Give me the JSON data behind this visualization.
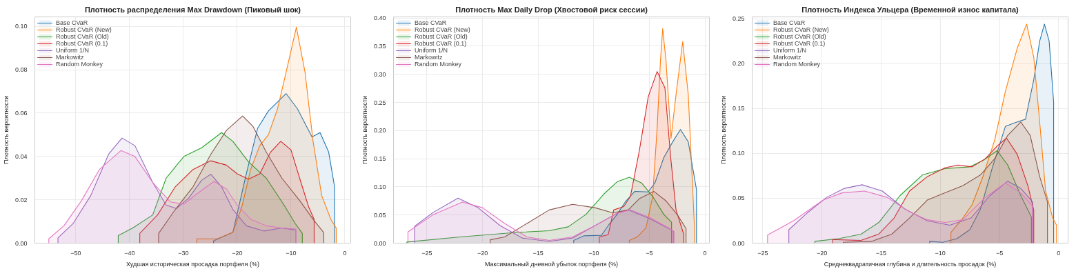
{
  "chart_data": [
    {
      "type": "area",
      "title": "Плотность распределения Max Drawdown (Пиковый шок)",
      "xlabel": "Худшая историческая просадка портфеля (%)",
      "ylabel": "Плотность вероятности",
      "xlim": [
        -57.6,
        1.1
      ],
      "ylim": [
        0,
        0.1044
      ],
      "xticks": [
        {
          "value": -50,
          "label": "−50"
        },
        {
          "value": -40,
          "label": "−40"
        },
        {
          "value": -30,
          "label": "−30"
        },
        {
          "value": -20,
          "label": "−20"
        },
        {
          "value": -10,
          "label": "−10"
        },
        0
      ],
      "yticks": [
        {
          "value": 0,
          "label": "0.00"
        },
        {
          "value": 0.02,
          "label": "0.02"
        },
        {
          "value": 0.04,
          "label": "0.04"
        },
        {
          "value": 0.06,
          "label": "0.06"
        },
        {
          "value": 0.08,
          "label": "0.08"
        },
        {
          "value": 0.1,
          "label": "0.10"
        }
      ],
      "grid": true,
      "legend": "top left",
      "series": [
        {
          "name": "Base CVaR",
          "color": "#1f77b4",
          "x": [
            -24.4,
            -20.8,
            -18.3,
            -16.2,
            -14.2,
            -10.9,
            -8.8,
            -6.1,
            -4.6,
            -3.0,
            -1.9
          ],
          "values": [
            0.001,
            0.005,
            0.032,
            0.053,
            0.061,
            0.069,
            0.062,
            0.049,
            0.051,
            0.042,
            0.026
          ]
        },
        {
          "name": "Robust CVaR (New)",
          "color": "#ff7f0e",
          "x": [
            -27.5,
            -23.7,
            -20.8,
            -19.1,
            -17.5,
            -15.8,
            -14.2,
            -12.5,
            -10.9,
            -9.0,
            -7.4,
            -5.9,
            -4.3,
            -2.6,
            -1.6
          ],
          "values": [
            0.002,
            0.002,
            0.005,
            0.017,
            0.034,
            0.045,
            0.05,
            0.062,
            0.079,
            0.0997,
            0.079,
            0.047,
            0.022,
            0.011,
            0.007
          ]
        },
        {
          "name": "Robust CVaR (Old)",
          "color": "#2ca02c",
          "x": [
            -42.1,
            -39.4,
            -35.7,
            -33.2,
            -29.9,
            -26.6,
            -22.9,
            -20.8,
            -17.9,
            -14.6,
            -11.3,
            -9.2,
            -7.9
          ],
          "values": [
            0.0035,
            0.007,
            0.013,
            0.03,
            0.04,
            0.044,
            0.051,
            0.047,
            0.0375,
            0.03,
            0.0176,
            0.009,
            0.0045
          ]
        },
        {
          "name": "Robust CVaR (0.1)",
          "color": "#d62728",
          "x": [
            -38.1,
            -34.8,
            -31.5,
            -28.2,
            -24.9,
            -22.0,
            -20.0,
            -17.9,
            -15.8,
            -13.8,
            -11.9,
            -10.0,
            -8.4,
            -6.7,
            -5.7
          ],
          "values": [
            0.0045,
            0.013,
            0.026,
            0.034,
            0.038,
            0.036,
            0.032,
            0.0295,
            0.032,
            0.042,
            0.047,
            0.043,
            0.03,
            0.0166,
            0.011
          ]
        },
        {
          "name": "Uniform 1/N",
          "color": "#9467bd",
          "x": [
            -53.3,
            -50.5,
            -47.2,
            -43.9,
            -41.4,
            -39.0,
            -35.7,
            -33.2,
            -31.3,
            -29.0,
            -26.6,
            -24.9,
            -22.9,
            -20.8,
            -18.3,
            -15.0,
            -11.7,
            -9.1
          ],
          "values": [
            0.0024,
            0.009,
            0.022,
            0.041,
            0.0485,
            0.045,
            0.028,
            0.0176,
            0.016,
            0.0208,
            0.029,
            0.0318,
            0.026,
            0.0155,
            0.008,
            0.0056,
            0.007,
            0.006
          ]
        },
        {
          "name": "Markowitz",
          "color": "#8c564b",
          "x": [
            -34.6,
            -31.5,
            -28.2,
            -24.9,
            -22.0,
            -19.0,
            -17.1,
            -14.6,
            -11.7,
            -8.4,
            -5.9,
            -3.9
          ],
          "values": [
            0.0045,
            0.0155,
            0.026,
            0.041,
            0.052,
            0.0587,
            0.054,
            0.042,
            0.03,
            0.0197,
            0.011,
            0.0048
          ]
        },
        {
          "name": "Random Monkey",
          "color": "#e377c2",
          "x": [
            -55.0,
            -52.2,
            -48.9,
            -45.6,
            -41.6,
            -39.0,
            -35.7,
            -32.4,
            -29.9,
            -27.4,
            -24.3,
            -22.0,
            -20.0,
            -17.5,
            -14.6,
            -11.7,
            -9.1
          ],
          "values": [
            0.002,
            0.008,
            0.0197,
            0.034,
            0.0427,
            0.04,
            0.028,
            0.019,
            0.018,
            0.0229,
            0.0285,
            0.025,
            0.0176,
            0.011,
            0.008,
            0.007,
            0.0066
          ]
        }
      ]
    },
    {
      "type": "area",
      "title": "Плотность Max Daily Drop (Хвостовой риск сессии)",
      "xlabel": "Максимальный дневной убыток портфеля (%)",
      "ylabel": "Плотность вероятности",
      "xlim": [
        -28.0,
        0.4
      ],
      "ylim": [
        0,
        0.402
      ],
      "xticks": [
        {
          "value": -25,
          "label": "−25"
        },
        {
          "value": -20,
          "label": "−20"
        },
        {
          "value": -15,
          "label": "−15"
        },
        {
          "value": -10,
          "label": "−10"
        },
        {
          "value": -5,
          "label": "−5"
        },
        0
      ],
      "yticks": [
        {
          "value": 0,
          "label": "0.00"
        },
        {
          "value": 0.05,
          "label": "0.05"
        },
        {
          "value": 0.1,
          "label": "0.10"
        },
        {
          "value": 0.15,
          "label": "0.15"
        },
        {
          "value": 0.2,
          "label": "0.20"
        },
        {
          "value": 0.25,
          "label": "0.25"
        },
        {
          "value": 0.3,
          "label": "0.30"
        },
        {
          "value": 0.35,
          "label": "0.35"
        },
        {
          "value": 0.4,
          "label": "0.40"
        }
      ],
      "grid": true,
      "legend": "top left",
      "series": [
        {
          "name": "Base CVaR",
          "color": "#1f77b4",
          "x": [
            -11.8,
            -10.9,
            -9.3,
            -8.7,
            -7.9,
            -7.1,
            -6.3,
            -5.1,
            -4.5,
            -3.7,
            -2.9,
            -2.2,
            -1.5,
            -0.76
          ],
          "values": [
            0.005,
            0.013,
            0.014,
            0.031,
            0.051,
            0.075,
            0.092,
            0.091,
            0.107,
            0.152,
            0.18,
            0.202,
            0.18,
            0.095
          ]
        },
        {
          "name": "Robust CVaR (New)",
          "color": "#ff7f0e",
          "x": [
            -6.8,
            -6.1,
            -5.3,
            -4.7,
            -4.3,
            -4.0,
            -3.8,
            -3.5,
            -3.05,
            -2.6,
            -2.0,
            -1.5,
            -0.94
          ],
          "values": [
            0.005,
            0.011,
            0.027,
            0.083,
            0.204,
            0.324,
            0.381,
            0.324,
            0.186,
            0.264,
            0.358,
            0.264,
            0.027
          ]
        },
        {
          "name": "Robust CVaR (Old)",
          "color": "#2ca02c",
          "x": [
            -26.8,
            -22.0,
            -17.0,
            -14.0,
            -12.3,
            -10.7,
            -9.1,
            -7.9,
            -6.8,
            -5.7,
            -4.7,
            -3.7,
            -3.0
          ],
          "values": [
            0.002,
            0.011,
            0.019,
            0.022,
            0.029,
            0.051,
            0.087,
            0.109,
            0.117,
            0.107,
            0.083,
            0.051,
            0.037
          ]
        },
        {
          "name": "Robust CVaR (0.1)",
          "color": "#d62728",
          "x": [
            -9.5,
            -8.7,
            -8.2,
            -7.3,
            -6.7,
            -5.9,
            -5.1,
            -4.3,
            -3.6,
            -3.1,
            -2.6,
            -1.9
          ],
          "values": [
            0.011,
            0.015,
            0.059,
            0.065,
            0.083,
            0.164,
            0.26,
            0.305,
            0.276,
            0.156,
            0.059,
            0.015
          ]
        },
        {
          "name": "Uniform 1/N",
          "color": "#9467bd",
          "x": [
            -26.1,
            -24.4,
            -22.2,
            -20.4,
            -18.4,
            -16.4,
            -14.0,
            -11.9,
            -9.9,
            -7.9,
            -6.9,
            -4.9,
            -2.8
          ],
          "values": [
            0.03,
            0.055,
            0.08,
            0.063,
            0.031,
            0.009,
            0.003,
            0.009,
            0.031,
            0.053,
            0.059,
            0.043,
            0.021
          ]
        },
        {
          "name": "Markowitz",
          "color": "#8c564b",
          "x": [
            -19.3,
            -18.0,
            -16.0,
            -14.0,
            -11.9,
            -9.9,
            -8.3,
            -6.9,
            -5.9,
            -4.6,
            -3.5,
            -2.5,
            -1.7
          ],
          "values": [
            0.006,
            0.011,
            0.035,
            0.059,
            0.069,
            0.063,
            0.054,
            0.059,
            0.079,
            0.092,
            0.075,
            0.051,
            0.026
          ]
        },
        {
          "name": "Random Monkey",
          "color": "#e377c2",
          "x": [
            -26.7,
            -24.4,
            -21.8,
            -20.0,
            -18.0,
            -16.0,
            -14.0,
            -11.9,
            -9.9,
            -7.9,
            -6.7,
            -4.9,
            -2.9
          ],
          "values": [
            0.02,
            0.051,
            0.073,
            0.063,
            0.035,
            0.011,
            0.005,
            0.011,
            0.031,
            0.053,
            0.059,
            0.045,
            0.023
          ]
        }
      ]
    },
    {
      "type": "area",
      "title": "Плотность Индекса Ульцера (Временной износ капитала)",
      "xlabel": "Среднеквадратичная глубина и длительность просадок (%)",
      "ylabel": "Плотность вероятности",
      "xlim": [
        -25.9,
        0.8
      ],
      "ylim": [
        0,
        0.252
      ],
      "xticks": [
        {
          "value": -25,
          "label": "−25"
        },
        {
          "value": -20,
          "label": "−20"
        },
        {
          "value": -15,
          "label": "−15"
        },
        {
          "value": -10,
          "label": "−10"
        },
        {
          "value": -5,
          "label": "−5"
        },
        0
      ],
      "yticks": [
        {
          "value": 0,
          "label": "0.00"
        },
        {
          "value": 0.05,
          "label": "0.05"
        },
        {
          "value": 0.1,
          "label": "0.10"
        },
        {
          "value": 0.15,
          "label": "0.15"
        },
        {
          "value": 0.2,
          "label": "0.20"
        },
        {
          "value": 0.25,
          "label": "0.25"
        }
      ],
      "grid": true,
      "legend": "top left",
      "series": [
        {
          "name": "Base CVaR",
          "color": "#1f77b4",
          "x": [
            -10.9,
            -9.8,
            -8.6,
            -7.5,
            -6.6,
            -5.6,
            -4.5,
            -3.7,
            -2.8,
            -2.1,
            -1.6,
            -1.2,
            -0.8,
            -0.42
          ],
          "values": [
            0.002,
            0.001,
            0.005,
            0.015,
            0.038,
            0.084,
            0.13,
            0.134,
            0.138,
            0.182,
            0.225,
            0.244,
            0.225,
            0.157
          ]
        },
        {
          "name": "Robust CVaR (New)",
          "color": "#ff7f0e",
          "x": [
            -9.1,
            -8.25,
            -7.3,
            -6.4,
            -5.4,
            -4.5,
            -3.5,
            -2.7,
            -2.1,
            -1.6,
            -1.1,
            -0.5,
            -0.17
          ],
          "values": [
            0.012,
            0.025,
            0.043,
            0.074,
            0.115,
            0.169,
            0.217,
            0.244,
            0.207,
            0.135,
            0.058,
            0.028,
            0.02
          ]
        },
        {
          "name": "Robust CVaR (Old)",
          "color": "#2ca02c",
          "x": [
            -20.6,
            -18.6,
            -16.7,
            -15.2,
            -13.4,
            -11.5,
            -9.6,
            -7.5,
            -6.4,
            -5.2,
            -4.3,
            -3.2,
            -2.3
          ],
          "values": [
            0.002,
            0.005,
            0.01,
            0.023,
            0.053,
            0.076,
            0.083,
            0.085,
            0.092,
            0.103,
            0.087,
            0.053,
            0.029
          ]
        },
        {
          "name": "Robust CVaR (0.1)",
          "color": "#d62728",
          "x": [
            -19.1,
            -16.7,
            -15.2,
            -13.9,
            -12.6,
            -11.1,
            -9.6,
            -8.5,
            -7.3,
            -6.2,
            -5.2,
            -4.4,
            -3.5,
            -2.6,
            -2.1
          ],
          "values": [
            0.004,
            0.003,
            0.01,
            0.028,
            0.058,
            0.074,
            0.084,
            0.087,
            0.085,
            0.094,
            0.108,
            0.117,
            0.099,
            0.064,
            0.037
          ]
        },
        {
          "name": "Uniform 1/N",
          "color": "#9467bd",
          "x": [
            -22.8,
            -21.3,
            -19.6,
            -18.1,
            -16.6,
            -14.9,
            -13.0,
            -11.1,
            -9.2,
            -7.4,
            -5.8,
            -4.3,
            -3.2,
            -2.2
          ],
          "values": [
            0.015,
            0.033,
            0.051,
            0.061,
            0.065,
            0.058,
            0.038,
            0.025,
            0.02,
            0.028,
            0.053,
            0.069,
            0.061,
            0.046
          ]
        },
        {
          "name": "Markowitz",
          "color": "#8c564b",
          "x": [
            -18.2,
            -15.8,
            -14.1,
            -12.6,
            -11.1,
            -9.6,
            -8.1,
            -6.6,
            -5.4,
            -4.3,
            -3.2,
            -2.4,
            -1.6,
            -0.94
          ],
          "values": [
            0.001,
            0.002,
            0.01,
            0.028,
            0.048,
            0.056,
            0.064,
            0.076,
            0.094,
            0.12,
            0.135,
            0.12,
            0.074,
            0.046
          ]
        },
        {
          "name": "Random Monkey",
          "color": "#e377c2",
          "x": [
            -24.6,
            -22.4,
            -19.9,
            -18.3,
            -16.4,
            -14.5,
            -12.6,
            -11.1,
            -9.6,
            -8.1,
            -6.2,
            -4.5,
            -3.2,
            -2.2
          ],
          "values": [
            0.009,
            0.025,
            0.048,
            0.056,
            0.058,
            0.051,
            0.035,
            0.026,
            0.023,
            0.026,
            0.051,
            0.067,
            0.056,
            0.041
          ]
        }
      ]
    }
  ]
}
